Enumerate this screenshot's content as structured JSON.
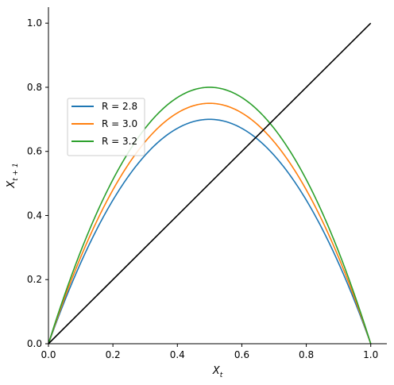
{
  "chart_data": {
    "type": "line",
    "title": "",
    "xlabel": "X_t",
    "ylabel": "X_{t+1}",
    "xlim": [
      0.0,
      1.05
    ],
    "ylim": [
      0.0,
      1.05
    ],
    "x_ticks": [
      "0.0",
      "0.2",
      "0.4",
      "0.6",
      "0.8",
      "1.0"
    ],
    "y_ticks": [
      "0.0",
      "0.2",
      "0.4",
      "0.6",
      "0.8",
      "1.0"
    ],
    "grid": false,
    "legend_position": "upper-left",
    "function": "X_{t+1} = R * X_t * (1 - X_t)",
    "series": [
      {
        "name": "R = 2.8",
        "R": 2.8,
        "color": "#1f77b4"
      },
      {
        "name": "R = 3.0",
        "R": 3.0,
        "color": "#ff7f0e"
      },
      {
        "name": "R = 3.2",
        "R": 3.2,
        "color": "#2ca02c"
      }
    ],
    "diagonal": {
      "x": [
        0,
        1
      ],
      "y": [
        0,
        1
      ],
      "color": "#000000"
    }
  }
}
